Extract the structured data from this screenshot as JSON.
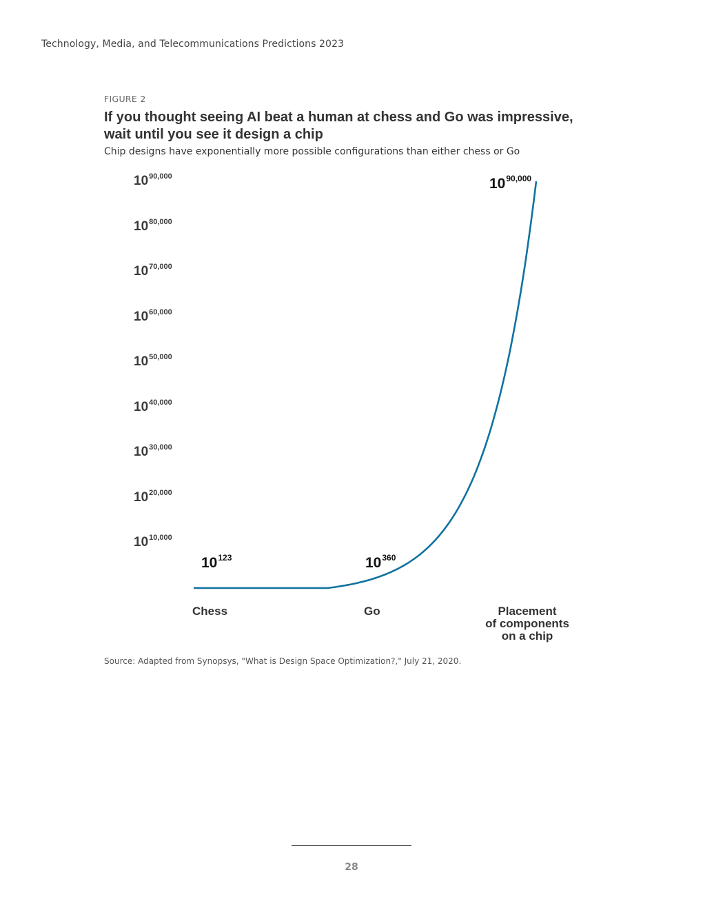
{
  "header": {
    "running_title": "Technology, Media, and Telecommunications Predictions 2023"
  },
  "figure": {
    "label": "FIGURE 2",
    "title": "If you thought seeing AI beat a human at chess and Go was impressive, wait until you see it design a chip",
    "subtitle": "Chip designs have exponentially more possible configurations than either chess or Go",
    "source": "Source: Adapted from Synopsys, \"What is Design Space Optimization?,\" July 21, 2020."
  },
  "chart_data": {
    "type": "line",
    "y_scale": "log (exponent shown as power of 10)",
    "categories": [
      "Chess",
      "Go",
      "Placement of components on a chip"
    ],
    "category_display": [
      "Chess",
      "Go",
      "Placement\nof components\non a chip"
    ],
    "series": [
      {
        "exponents": [
          123,
          360,
          90000
        ],
        "data_labels": [
          {
            "base": "10",
            "exp": "123"
          },
          {
            "base": "10",
            "exp": "360"
          },
          {
            "base": "10",
            "exp": "90,000"
          }
        ]
      }
    ],
    "y_ticks": [
      {
        "base": "10",
        "exp": "10,000",
        "value": 10000
      },
      {
        "base": "10",
        "exp": "20,000",
        "value": 20000
      },
      {
        "base": "10",
        "exp": "30,000",
        "value": 30000
      },
      {
        "base": "10",
        "exp": "40,000",
        "value": 40000
      },
      {
        "base": "10",
        "exp": "50,000",
        "value": 50000
      },
      {
        "base": "10",
        "exp": "60,000",
        "value": 60000
      },
      {
        "base": "10",
        "exp": "70,000",
        "value": 70000
      },
      {
        "base": "10",
        "exp": "80,000",
        "value": 80000
      },
      {
        "base": "10",
        "exp": "90,000",
        "value": 90000
      }
    ],
    "ylim": [
      0,
      90000
    ],
    "grid": false,
    "legend": "none",
    "line_color": "#0f72a0"
  },
  "footer": {
    "page_number": "28"
  }
}
